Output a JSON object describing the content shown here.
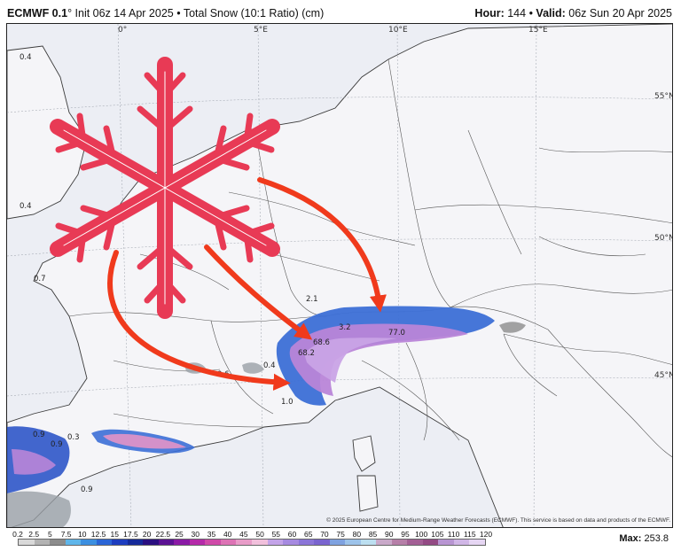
{
  "header": {
    "model": "ECMWF 0.1",
    "degree": "°",
    "init": " Init 06z 14 Apr 2025",
    "bullet": " • ",
    "product": "Total Snow (10:1 Ratio) (cm)",
    "hour_label": "Hour:",
    "hour_value": " 144",
    "valid_label": "Valid:",
    "valid_value": " 06z Sun 20 Apr 2025"
  },
  "map": {
    "lon_labels": [
      "0°",
      "5°E",
      "10°E",
      "15°E"
    ],
    "lat_labels": [
      "55°N",
      "50°N",
      "45°N"
    ],
    "snow_values": [
      "0.4",
      "0.4",
      "0.7",
      "0.6",
      "0.4",
      "2.1",
      "3.2",
      "68.6",
      "68.2",
      "1.0",
      "77.0",
      "0.9",
      "0.3",
      "0.9",
      "0.9"
    ],
    "overlay": {
      "snowflake_icon": "snowflake",
      "arrow_icon": "arrow",
      "colors": {
        "snowflake": "#e83a55",
        "arrows": "#f03a1c"
      }
    },
    "copyright": "© 2025 European Centre for Medium-Range Weather Forecasts (ECMWF). This service is based on data and products of the ECMWF."
  },
  "legend": {
    "ticks": [
      "0.2",
      "2.5",
      "5",
      "7.5",
      "10",
      "12.5",
      "15",
      "17.5",
      "20",
      "22.5",
      "25",
      "30",
      "35",
      "40",
      "45",
      "50",
      "55",
      "60",
      "65",
      "70",
      "75",
      "80",
      "85",
      "90",
      "95",
      "100",
      "105",
      "110",
      "115",
      "120"
    ],
    "colors": [
      "#d9d9d9",
      "#b3b3b3",
      "#8c8c8c",
      "#5fb6ea",
      "#3c8fe0",
      "#2b65d6",
      "#1d3dbf",
      "#152a99",
      "#2a0f80",
      "#5b1293",
      "#8a1aa5",
      "#b52aa9",
      "#cf4aa8",
      "#dd73b5",
      "#e89cc8",
      "#f1c0dc",
      "#c3a3e8",
      "#a68ae0",
      "#8b75d8",
      "#7a64cf",
      "#7fa2e0",
      "#9dc3ea",
      "#bcdff0",
      "#c9a9c9",
      "#b67fa8",
      "#a35f95",
      "#934a84",
      "#b895d2",
      "#d0b6e6",
      "#e6d6f3"
    ],
    "max_label": "Max:",
    "max_value": " 253.8"
  }
}
